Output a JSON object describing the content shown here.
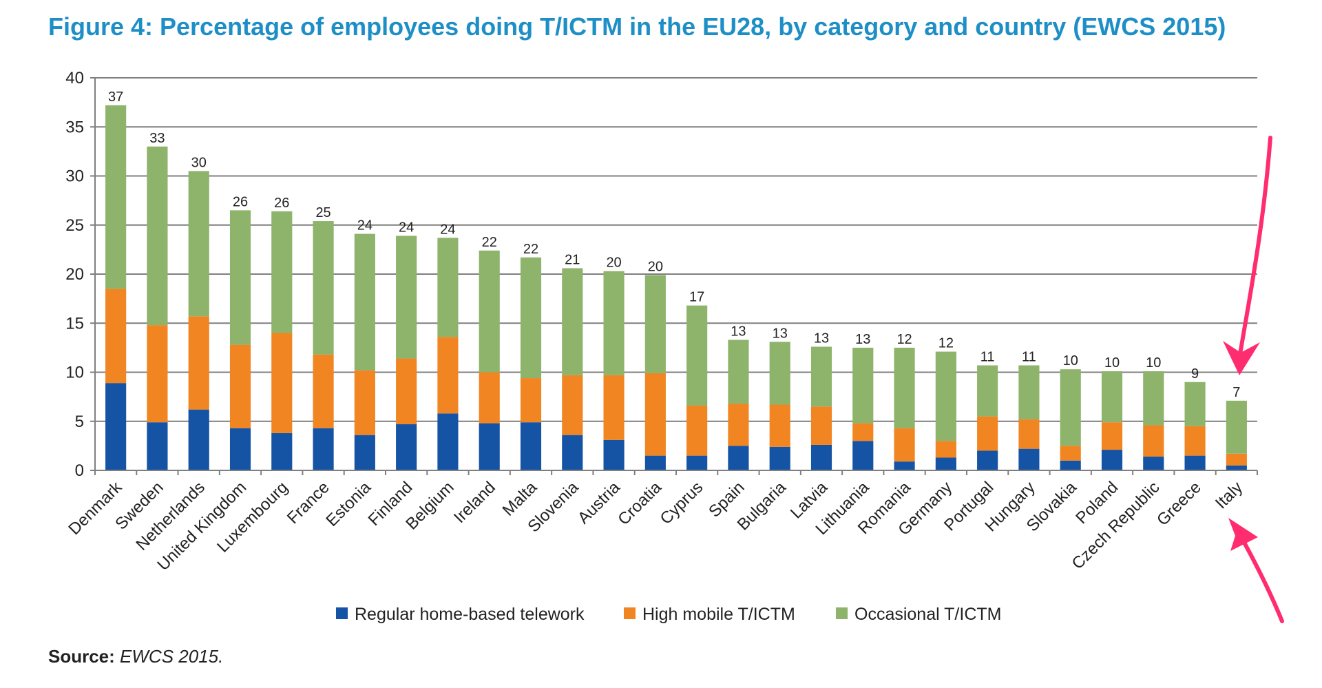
{
  "title": "Figure 4: Percentage of employees doing T/ICTM in the EU28, by category and country (EWCS 2015)",
  "source": {
    "label": "Source:",
    "value": "EWCS 2015."
  },
  "colors": {
    "title": "#1e8fc6",
    "regular": "#1553a5",
    "high": "#f08522",
    "occasional": "#8eb36a",
    "arrow": "#ff2d6f",
    "grid": "#7f7f7f"
  },
  "chart_data": {
    "type": "bar",
    "stacked": true,
    "categories": [
      "Denmark",
      "Sweden",
      "Netherlands",
      "United Kingdom",
      "Luxembourg",
      "France",
      "Estonia",
      "Finland",
      "Belgium",
      "Ireland",
      "Malta",
      "Slovenia",
      "Austria",
      "Croatia",
      "Cyprus",
      "Spain",
      "Bulgaria",
      "Latvia",
      "Lithuania",
      "Romania",
      "Germany",
      "Portugal",
      "Hungary",
      "Slovakia",
      "Poland",
      "Czech Republic",
      "Greece",
      "Italy"
    ],
    "series": [
      {
        "name": "Regular home-based telework",
        "color": "#1553a5",
        "values": [
          8.9,
          4.9,
          6.2,
          4.3,
          3.8,
          4.3,
          3.6,
          4.7,
          5.8,
          4.8,
          4.9,
          3.6,
          3.1,
          1.5,
          1.5,
          2.5,
          2.4,
          2.6,
          3.0,
          0.9,
          1.3,
          2.0,
          2.2,
          1.0,
          2.1,
          1.4,
          1.5,
          0.5
        ]
      },
      {
        "name": "High mobile T/ICTM",
        "color": "#f08522",
        "values": [
          9.6,
          9.9,
          9.5,
          8.5,
          10.2,
          7.5,
          6.6,
          6.7,
          7.8,
          5.2,
          4.5,
          6.1,
          6.6,
          8.4,
          5.1,
          4.3,
          4.3,
          3.9,
          1.8,
          3.4,
          1.7,
          3.5,
          3.0,
          1.5,
          2.8,
          3.2,
          3.0,
          1.2
        ]
      },
      {
        "name": "Occasional T/ICTM",
        "color": "#8eb36a",
        "values": [
          18.7,
          18.2,
          14.8,
          13.7,
          12.4,
          13.6,
          13.9,
          12.5,
          10.1,
          12.4,
          12.3,
          10.9,
          10.6,
          10.0,
          10.2,
          6.5,
          6.4,
          6.1,
          7.7,
          8.2,
          9.1,
          5.2,
          5.5,
          7.8,
          5.2,
          5.5,
          4.5,
          5.4
        ]
      }
    ],
    "data_labels": [
      "37",
      "33",
      "30",
      "26",
      "26",
      "25",
      "24",
      "24",
      "24",
      "22",
      "22",
      "21",
      "20",
      "20",
      "17",
      "13",
      "13",
      "13",
      "13",
      "12",
      "12",
      "11",
      "11",
      "10",
      "10",
      "10",
      "9",
      "7"
    ],
    "yticks": [
      "0",
      "5",
      "10",
      "15",
      "20",
      "25",
      "30",
      "35",
      "40"
    ],
    "ylim": [
      0,
      40
    ],
    "grid": true,
    "legend_position": "bottom",
    "highlight": {
      "category": "Italy",
      "marker": "two pink arrows"
    }
  }
}
